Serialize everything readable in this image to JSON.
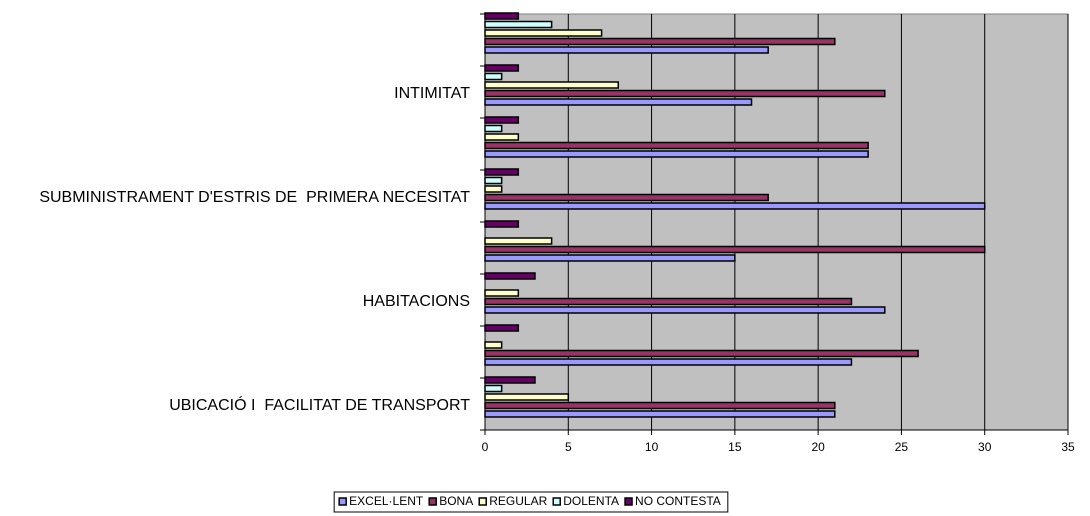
{
  "chart_data": {
    "type": "bar",
    "orientation": "horizontal",
    "categories": [
      "UBICACIÓ I  FACILITAT DE TRANSPORT",
      null,
      "HABITACIONS",
      null,
      "SUBMINISTRAMENT D'ESTRIS DE  PRIMERA NECESITAT",
      null,
      "INTIMITAT",
      null
    ],
    "series": [
      {
        "name": "EXCEL·LENT",
        "color": "#9999ff",
        "values": [
          21,
          22,
          24,
          15,
          30,
          23,
          16,
          17
        ]
      },
      {
        "name": "BONA",
        "color": "#993366",
        "values": [
          21,
          26,
          22,
          30,
          17,
          23,
          24,
          21
        ]
      },
      {
        "name": "REGULAR",
        "color": "#ffffcc",
        "values": [
          5,
          1,
          2,
          4,
          1,
          2,
          8,
          7
        ]
      },
      {
        "name": "DOLENTA",
        "color": "#ccffff",
        "values": [
          1,
          0,
          0,
          0,
          1,
          1,
          1,
          4
        ]
      },
      {
        "name": "NO CONTESTA",
        "color": "#660066",
        "values": [
          3,
          2,
          3,
          2,
          2,
          2,
          2,
          2
        ]
      }
    ],
    "xlim": [
      0,
      35
    ],
    "xticks": [
      0,
      5,
      10,
      15,
      20,
      25,
      30,
      35
    ],
    "grid": true,
    "legend": "bottom"
  }
}
